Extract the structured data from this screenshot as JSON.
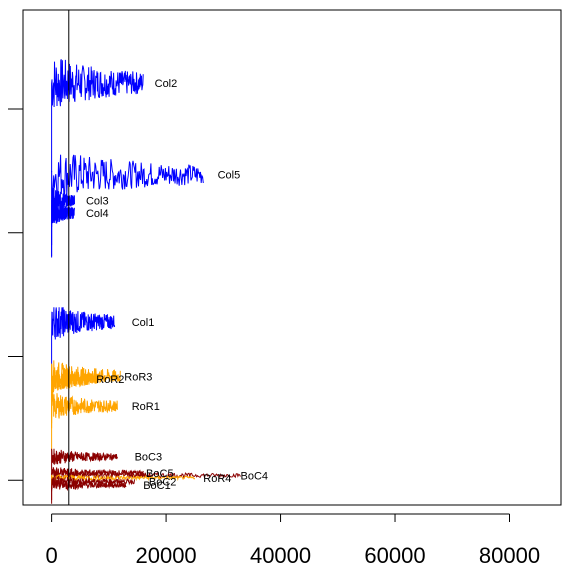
{
  "chart_data": {
    "type": "line",
    "title": "",
    "xlabel": "",
    "ylabel": "",
    "xlim": [
      -5000,
      89000
    ],
    "ylim": [
      0,
      20
    ],
    "x_ticks": [
      0,
      20000,
      40000,
      60000,
      80000
    ],
    "x_tick_labels": [
      "0",
      "20000",
      "40000",
      "60000",
      "80000"
    ],
    "y_ticks": [
      1,
      6,
      11,
      16
    ],
    "y_tick_labels": [
      "",
      "",
      "",
      ""
    ],
    "vline_x": 3000,
    "colors": {
      "blue": "#0000ff",
      "orange": "#ffa500",
      "darkred": "#8b0000"
    },
    "series": [
      {
        "name": "Col2",
        "color": "#0000ff",
        "x_end": 16000,
        "base": 17.05,
        "amp": 1.2,
        "label_x": 18000,
        "label_y": 17.05
      },
      {
        "name": "Col5",
        "color": "#0000ff",
        "x_end": 26500,
        "base": 13.35,
        "amp": 1.1,
        "label_x": 29000,
        "label_y": 13.35
      },
      {
        "name": "Col3",
        "color": "#0000ff",
        "x_end": 4000,
        "base": 12.3,
        "amp": 0.6,
        "label_x": 6000,
        "label_y": 12.3
      },
      {
        "name": "Col4",
        "color": "#0000ff",
        "x_end": 4000,
        "base": 11.8,
        "amp": 0.6,
        "label_x": 6000,
        "label_y": 11.8
      },
      {
        "name": "Col1",
        "color": "#0000ff",
        "x_end": 11000,
        "base": 7.4,
        "amp": 0.8,
        "label_x": 14000,
        "label_y": 7.4
      },
      {
        "name": "RoR3",
        "color": "#ffa500",
        "x_end": 12000,
        "base": 5.2,
        "amp": 0.7,
        "label_x": 12700,
        "label_y": 5.2
      },
      {
        "name": "RoR2",
        "color": "#ffa500",
        "x_end": 8000,
        "base": 5.1,
        "amp": 0.6,
        "label_x": 7800,
        "label_y": 5.1
      },
      {
        "name": "RoR1",
        "color": "#ffa500",
        "x_end": 11500,
        "base": 4.0,
        "amp": 0.6,
        "label_x": 14000,
        "label_y": 4.0
      },
      {
        "name": "BoC3",
        "color": "#8b0000",
        "x_end": 11500,
        "base": 1.95,
        "amp": 0.35,
        "label_x": 14500,
        "label_y": 1.95
      },
      {
        "name": "BoC5",
        "color": "#8b0000",
        "x_end": 16000,
        "base": 1.3,
        "amp": 0.25,
        "label_x": 16500,
        "label_y": 1.3
      },
      {
        "name": "BoC4",
        "color": "#8b0000",
        "x_end": 33000,
        "base": 1.2,
        "amp": 0.2,
        "label_x": 33000,
        "label_y": 1.2
      },
      {
        "name": "RoR4",
        "color": "#ffa500",
        "x_end": 25000,
        "base": 1.1,
        "amp": 0.15,
        "label_x": 26500,
        "label_y": 1.1
      },
      {
        "name": "BoC2",
        "color": "#8b0000",
        "x_end": 14500,
        "base": 0.95,
        "amp": 0.25,
        "label_x": 17000,
        "label_y": 0.95
      },
      {
        "name": "BoC1",
        "color": "#8b0000",
        "x_end": 13000,
        "base": 0.8,
        "amp": 0.25,
        "label_x": 16000,
        "label_y": 0.8
      }
    ]
  }
}
